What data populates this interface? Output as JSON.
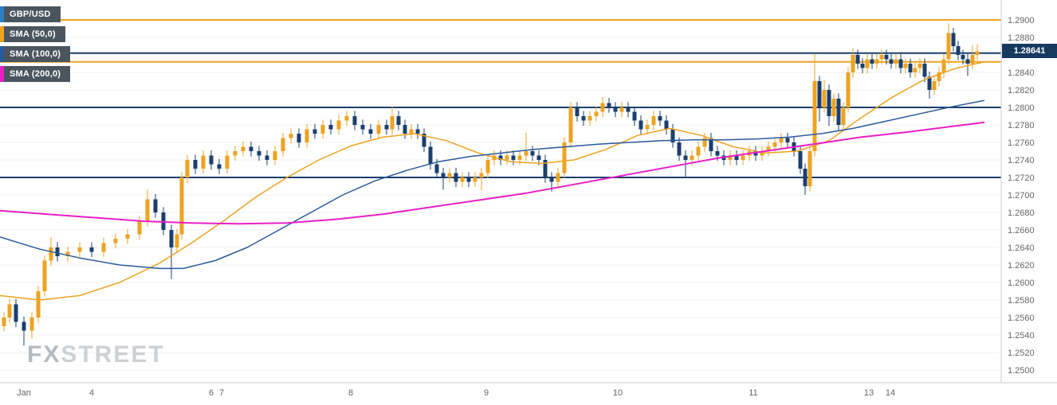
{
  "legend": {
    "symbol": "GBP/USD",
    "sma50": "SMA (50,0)",
    "sma100": "SMA (100,0)",
    "sma200": "SMA (200,0)"
  },
  "price_label": "1.28641",
  "watermark": {
    "fx": "FX",
    "street": "STREET"
  },
  "colors": {
    "navy": "#1b3f6e",
    "orange": "#eda321",
    "blue": "#2a5a9c",
    "magenta": "#e81fc6",
    "grid": "#f0f0f0",
    "axis_text": "#666666",
    "border": "#cccccc"
  },
  "chart_data": {
    "type": "candlestick",
    "symbol": "GBP/USD",
    "overlays": [
      "SMA(50)",
      "SMA(100)",
      "SMA(200)"
    ],
    "last_price": 1.28641,
    "ylim": [
      1.249,
      1.292
    ],
    "y_ticks": [
      "1.2900",
      "1.2880",
      "1.2860",
      "1.2840",
      "1.2820",
      "1.2800",
      "1.2780",
      "1.2760",
      "1.2740",
      "1.2720",
      "1.2700",
      "1.2680",
      "1.2660",
      "1.2640",
      "1.2620",
      "1.2600",
      "1.2580",
      "1.2560",
      "1.2540",
      "1.2520",
      "1.2500"
    ],
    "x_axis_labels": [
      [
        "Jan",
        30
      ],
      [
        "4",
        115
      ],
      [
        "6",
        265
      ],
      [
        "7",
        278
      ],
      [
        "8",
        440
      ],
      [
        "9",
        610
      ],
      [
        "10",
        775
      ],
      [
        "11",
        945
      ],
      [
        "13",
        1090
      ],
      [
        "14",
        1117
      ]
    ],
    "horizontal_lines": [
      {
        "price": 1.29,
        "color_key": "orange",
        "width": 2
      },
      {
        "price": 1.2862,
        "color_key": "navy",
        "width": 2
      },
      {
        "price": 1.2852,
        "color_key": "orange",
        "width": 2
      },
      {
        "price": 1.28,
        "color_key": "navy",
        "width": 2
      },
      {
        "price": 1.272,
        "color_key": "navy",
        "width": 2
      }
    ],
    "candles": [
      [
        5,
        1.255,
        1.2566,
        1.2544,
        1.256
      ],
      [
        12,
        1.256,
        1.2581,
        1.2554,
        1.2575
      ],
      [
        20,
        1.2575,
        1.2581,
        1.2549,
        1.2555
      ],
      [
        30,
        1.2555,
        1.2561,
        1.2528,
        1.2545
      ],
      [
        40,
        1.2545,
        1.2566,
        1.2536,
        1.256
      ],
      [
        48,
        1.256,
        1.2596,
        1.2554,
        1.259
      ],
      [
        56,
        1.259,
        1.2631,
        1.2584,
        1.2625
      ],
      [
        64,
        1.2625,
        1.2652,
        1.2619,
        1.264
      ],
      [
        72,
        1.264,
        1.2646,
        1.2624,
        1.263
      ],
      [
        85,
        1.263,
        1.2641,
        1.2624,
        1.2635
      ],
      [
        100,
        1.2635,
        1.2646,
        1.2629,
        1.264
      ],
      [
        115,
        1.264,
        1.2646,
        1.2629,
        1.2635
      ],
      [
        130,
        1.2635,
        1.2651,
        1.2629,
        1.2645
      ],
      [
        145,
        1.2645,
        1.2656,
        1.2639,
        1.265
      ],
      [
        160,
        1.265,
        1.2661,
        1.2644,
        1.2655
      ],
      [
        175,
        1.2655,
        1.2676,
        1.2649,
        1.267
      ],
      [
        185,
        1.267,
        1.2706,
        1.2664,
        1.2695
      ],
      [
        195,
        1.2695,
        1.2701,
        1.2674,
        1.268
      ],
      [
        205,
        1.268,
        1.2686,
        1.2654,
        1.266
      ],
      [
        215,
        1.266,
        1.2666,
        1.2604,
        1.264
      ],
      [
        222,
        1.264,
        1.2661,
        1.2634,
        1.2655
      ],
      [
        228,
        1.2655,
        1.2726,
        1.2649,
        1.272
      ],
      [
        235,
        1.272,
        1.2746,
        1.2714,
        1.274
      ],
      [
        245,
        1.274,
        1.2746,
        1.2724,
        1.273
      ],
      [
        255,
        1.273,
        1.2751,
        1.2724,
        1.2745
      ],
      [
        265,
        1.2745,
        1.2751,
        1.2729,
        1.2735
      ],
      [
        275,
        1.2735,
        1.2741,
        1.2724,
        1.273
      ],
      [
        285,
        1.273,
        1.2751,
        1.2724,
        1.2745
      ],
      [
        295,
        1.2745,
        1.2756,
        1.2739,
        1.275
      ],
      [
        305,
        1.275,
        1.2761,
        1.2744,
        1.2755
      ],
      [
        315,
        1.2755,
        1.2761,
        1.2744,
        1.275
      ],
      [
        325,
        1.275,
        1.2756,
        1.2739,
        1.2745
      ],
      [
        335,
        1.2745,
        1.2751,
        1.2734,
        1.274
      ],
      [
        345,
        1.274,
        1.2756,
        1.2734,
        1.275
      ],
      [
        355,
        1.275,
        1.2771,
        1.2744,
        1.2765
      ],
      [
        365,
        1.2765,
        1.2776,
        1.2759,
        1.277
      ],
      [
        375,
        1.277,
        1.2776,
        1.2754,
        1.276
      ],
      [
        385,
        1.276,
        1.2781,
        1.2754,
        1.2775
      ],
      [
        395,
        1.2775,
        1.2781,
        1.2764,
        1.277
      ],
      [
        405,
        1.277,
        1.2786,
        1.2764,
        1.278
      ],
      [
        415,
        1.278,
        1.2786,
        1.2769,
        1.2775
      ],
      [
        425,
        1.2775,
        1.2791,
        1.2769,
        1.2785
      ],
      [
        435,
        1.2785,
        1.2796,
        1.2779,
        1.279
      ],
      [
        445,
        1.279,
        1.2796,
        1.2774,
        1.278
      ],
      [
        455,
        1.278,
        1.2786,
        1.2769,
        1.2775
      ],
      [
        465,
        1.2775,
        1.2781,
        1.2764,
        1.277
      ],
      [
        475,
        1.277,
        1.2786,
        1.2764,
        1.278
      ],
      [
        485,
        1.278,
        1.2786,
        1.2769,
        1.2775
      ],
      [
        492,
        1.2775,
        1.2801,
        1.2769,
        1.279
      ],
      [
        500,
        1.279,
        1.2796,
        1.2774,
        1.278
      ],
      [
        508,
        1.278,
        1.2786,
        1.2764,
        1.277
      ],
      [
        516,
        1.277,
        1.2781,
        1.2764,
        1.2775
      ],
      [
        524,
        1.2775,
        1.2781,
        1.2764,
        1.277
      ],
      [
        532,
        1.277,
        1.2776,
        1.2749,
        1.2755
      ],
      [
        540,
        1.2755,
        1.2761,
        1.2729,
        1.2735
      ],
      [
        548,
        1.2735,
        1.2741,
        1.2719,
        1.2725
      ],
      [
        556,
        1.2725,
        1.2731,
        1.2706,
        1.272
      ],
      [
        564,
        1.272,
        1.2731,
        1.2714,
        1.2725
      ],
      [
        572,
        1.2725,
        1.2731,
        1.2709,
        1.2715
      ],
      [
        580,
        1.2715,
        1.2726,
        1.2709,
        1.272
      ],
      [
        588,
        1.272,
        1.2726,
        1.2709,
        1.2715
      ],
      [
        596,
        1.2715,
        1.2726,
        1.2709,
        1.272
      ],
      [
        604,
        1.272,
        1.2731,
        1.2705,
        1.2725
      ],
      [
        612,
        1.2725,
        1.2746,
        1.2719,
        1.274
      ],
      [
        620,
        1.274,
        1.2751,
        1.2734,
        1.2745
      ],
      [
        628,
        1.2745,
        1.2751,
        1.2734,
        1.274
      ],
      [
        636,
        1.274,
        1.2751,
        1.2734,
        1.2745
      ],
      [
        644,
        1.2745,
        1.2751,
        1.2734,
        1.274
      ],
      [
        652,
        1.274,
        1.2751,
        1.2734,
        1.2745
      ],
      [
        660,
        1.2745,
        1.2771,
        1.2739,
        1.275
      ],
      [
        668,
        1.275,
        1.2756,
        1.2739,
        1.2745
      ],
      [
        676,
        1.2745,
        1.2751,
        1.2734,
        1.274
      ],
      [
        684,
        1.274,
        1.2746,
        1.2714,
        1.272
      ],
      [
        692,
        1.272,
        1.2726,
        1.2704,
        1.2715
      ],
      [
        700,
        1.2715,
        1.2731,
        1.2709,
        1.2725
      ],
      [
        708,
        1.2725,
        1.2766,
        1.2719,
        1.276
      ],
      [
        716,
        1.276,
        1.2806,
        1.2754,
        1.28
      ],
      [
        724,
        1.28,
        1.2806,
        1.2784,
        1.279
      ],
      [
        732,
        1.279,
        1.2796,
        1.2779,
        1.2785
      ],
      [
        740,
        1.2785,
        1.2796,
        1.2779,
        1.279
      ],
      [
        748,
        1.279,
        1.2801,
        1.2784,
        1.2795
      ],
      [
        756,
        1.2795,
        1.2812,
        1.2789,
        1.2805
      ],
      [
        764,
        1.2805,
        1.2811,
        1.2794,
        1.28
      ],
      [
        772,
        1.28,
        1.2806,
        1.2789,
        1.2795
      ],
      [
        780,
        1.2795,
        1.2806,
        1.2789,
        1.28
      ],
      [
        788,
        1.28,
        1.2806,
        1.2789,
        1.2795
      ],
      [
        796,
        1.2795,
        1.2801,
        1.2779,
        1.2785
      ],
      [
        804,
        1.2785,
        1.2791,
        1.2769,
        1.2775
      ],
      [
        812,
        1.2775,
        1.2786,
        1.2769,
        1.278
      ],
      [
        820,
        1.278,
        1.2796,
        1.2774,
        1.279
      ],
      [
        828,
        1.279,
        1.2796,
        1.2779,
        1.2785
      ],
      [
        836,
        1.2785,
        1.2791,
        1.2769,
        1.2775
      ],
      [
        844,
        1.2775,
        1.2781,
        1.2754,
        1.276
      ],
      [
        852,
        1.276,
        1.2766,
        1.2739,
        1.2745
      ],
      [
        860,
        1.2745,
        1.2751,
        1.272,
        1.274
      ],
      [
        868,
        1.274,
        1.2751,
        1.2734,
        1.2745
      ],
      [
        876,
        1.2745,
        1.2761,
        1.2739,
        1.2755
      ],
      [
        884,
        1.2755,
        1.2771,
        1.2749,
        1.2765
      ],
      [
        892,
        1.2765,
        1.2771,
        1.2744,
        1.275
      ],
      [
        900,
        1.275,
        1.2756,
        1.2739,
        1.2745
      ],
      [
        908,
        1.2745,
        1.2751,
        1.2734,
        1.274
      ],
      [
        916,
        1.274,
        1.2751,
        1.2734,
        1.2745
      ],
      [
        924,
        1.2745,
        1.2751,
        1.2734,
        1.274
      ],
      [
        932,
        1.274,
        1.2751,
        1.2734,
        1.2745
      ],
      [
        940,
        1.2745,
        1.2756,
        1.2739,
        1.275
      ],
      [
        948,
        1.275,
        1.2756,
        1.2739,
        1.2745
      ],
      [
        956,
        1.2745,
        1.2756,
        1.2739,
        1.275
      ],
      [
        964,
        1.275,
        1.2761,
        1.2744,
        1.2755
      ],
      [
        972,
        1.2755,
        1.2766,
        1.2749,
        1.276
      ],
      [
        980,
        1.276,
        1.2771,
        1.2754,
        1.2765
      ],
      [
        988,
        1.2765,
        1.2771,
        1.2754,
        1.276
      ],
      [
        996,
        1.276,
        1.2766,
        1.2744,
        1.275
      ],
      [
        1004,
        1.275,
        1.2756,
        1.2724,
        1.273
      ],
      [
        1010,
        1.273,
        1.2736,
        1.27,
        1.271
      ],
      [
        1016,
        1.271,
        1.2756,
        1.2704,
        1.275
      ],
      [
        1022,
        1.275,
        1.2861,
        1.2744,
        1.283
      ],
      [
        1028,
        1.283,
        1.2836,
        1.2784,
        1.28
      ],
      [
        1034,
        1.28,
        1.2831,
        1.2794,
        1.282
      ],
      [
        1040,
        1.282,
        1.2826,
        1.2779,
        1.279
      ],
      [
        1046,
        1.279,
        1.2816,
        1.2784,
        1.281
      ],
      [
        1052,
        1.281,
        1.2816,
        1.2774,
        1.278
      ],
      [
        1058,
        1.278,
        1.2806,
        1.2774,
        1.28
      ],
      [
        1064,
        1.28,
        1.2846,
        1.2794,
        1.284
      ],
      [
        1070,
        1.284,
        1.2868,
        1.2834,
        1.286
      ],
      [
        1076,
        1.286,
        1.2866,
        1.2844,
        1.285
      ],
      [
        1082,
        1.285,
        1.2856,
        1.2839,
        1.2845
      ],
      [
        1088,
        1.2845,
        1.2861,
        1.2839,
        1.2855
      ],
      [
        1094,
        1.2855,
        1.2861,
        1.2844,
        1.285
      ],
      [
        1100,
        1.285,
        1.2861,
        1.2844,
        1.2855
      ],
      [
        1106,
        1.2855,
        1.2866,
        1.2849,
        1.286
      ],
      [
        1112,
        1.286,
        1.2866,
        1.2849,
        1.2855
      ],
      [
        1118,
        1.2855,
        1.2861,
        1.2844,
        1.285
      ],
      [
        1124,
        1.285,
        1.2861,
        1.2844,
        1.2855
      ],
      [
        1130,
        1.2855,
        1.2861,
        1.2839,
        1.2845
      ],
      [
        1136,
        1.2845,
        1.2856,
        1.2839,
        1.285
      ],
      [
        1142,
        1.285,
        1.2856,
        1.2834,
        1.284
      ],
      [
        1148,
        1.284,
        1.2851,
        1.2834,
        1.2845
      ],
      [
        1154,
        1.2845,
        1.2856,
        1.2839,
        1.285
      ],
      [
        1160,
        1.285,
        1.2856,
        1.2829,
        1.2835
      ],
      [
        1166,
        1.2835,
        1.2841,
        1.281,
        1.282
      ],
      [
        1172,
        1.282,
        1.2836,
        1.2814,
        1.283
      ],
      [
        1178,
        1.283,
        1.2846,
        1.2824,
        1.284
      ],
      [
        1184,
        1.284,
        1.2861,
        1.2834,
        1.2855
      ],
      [
        1190,
        1.2855,
        1.2896,
        1.2849,
        1.2885
      ],
      [
        1196,
        1.2885,
        1.2891,
        1.2864,
        1.287
      ],
      [
        1202,
        1.287,
        1.2876,
        1.2854,
        1.286
      ],
      [
        1208,
        1.286,
        1.2866,
        1.2849,
        1.2855
      ],
      [
        1214,
        1.2855,
        1.2861,
        1.2836,
        1.285
      ],
      [
        1220,
        1.285,
        1.2871,
        1.2844,
        1.286
      ],
      [
        1226,
        1.286,
        1.2872,
        1.2854,
        1.28641
      ]
    ],
    "sma50": [
      [
        0,
        1.2585
      ],
      [
        50,
        1.258
      ],
      [
        100,
        1.2585
      ],
      [
        150,
        1.26
      ],
      [
        200,
        1.2622
      ],
      [
        240,
        1.2645
      ],
      [
        280,
        1.267
      ],
      [
        320,
        1.2697
      ],
      [
        360,
        1.272
      ],
      [
        400,
        1.274
      ],
      [
        440,
        1.2756
      ],
      [
        480,
        1.2766
      ],
      [
        520,
        1.277
      ],
      [
        560,
        1.2762
      ],
      [
        600,
        1.2748
      ],
      [
        640,
        1.2738
      ],
      [
        680,
        1.2736
      ],
      [
        720,
        1.274
      ],
      [
        760,
        1.2752
      ],
      [
        800,
        1.2768
      ],
      [
        840,
        1.2776
      ],
      [
        880,
        1.2768
      ],
      [
        920,
        1.2755
      ],
      [
        960,
        1.2748
      ],
      [
        1000,
        1.275
      ],
      [
        1040,
        1.2762
      ],
      [
        1080,
        1.2788
      ],
      [
        1120,
        1.2812
      ],
      [
        1160,
        1.2832
      ],
      [
        1200,
        1.2845
      ],
      [
        1235,
        1.2852
      ]
    ],
    "sma100": [
      [
        0,
        1.2652
      ],
      [
        50,
        1.2638
      ],
      [
        100,
        1.2628
      ],
      [
        150,
        1.262
      ],
      [
        200,
        1.2616
      ],
      [
        230,
        1.2616
      ],
      [
        270,
        1.2625
      ],
      [
        310,
        1.264
      ],
      [
        350,
        1.266
      ],
      [
        390,
        1.268
      ],
      [
        430,
        1.27
      ],
      [
        470,
        1.2716
      ],
      [
        510,
        1.2728
      ],
      [
        550,
        1.2738
      ],
      [
        590,
        1.2744
      ],
      [
        630,
        1.2748
      ],
      [
        670,
        1.2752
      ],
      [
        710,
        1.2755
      ],
      [
        750,
        1.2758
      ],
      [
        790,
        1.276
      ],
      [
        830,
        1.2762
      ],
      [
        870,
        1.2763
      ],
      [
        910,
        1.2763
      ],
      [
        950,
        1.2764
      ],
      [
        990,
        1.2766
      ],
      [
        1030,
        1.277
      ],
      [
        1070,
        1.2776
      ],
      [
        1110,
        1.2784
      ],
      [
        1150,
        1.2792
      ],
      [
        1190,
        1.28
      ],
      [
        1235,
        1.2808
      ]
    ],
    "sma200": [
      [
        0,
        1.2682
      ],
      [
        60,
        1.2678
      ],
      [
        120,
        1.2674
      ],
      [
        180,
        1.267
      ],
      [
        240,
        1.2668
      ],
      [
        300,
        1.2667
      ],
      [
        360,
        1.2668
      ],
      [
        420,
        1.2672
      ],
      [
        480,
        1.2678
      ],
      [
        540,
        1.2686
      ],
      [
        600,
        1.2694
      ],
      [
        660,
        1.2702
      ],
      [
        720,
        1.2712
      ],
      [
        780,
        1.2722
      ],
      [
        840,
        1.2732
      ],
      [
        900,
        1.2742
      ],
      [
        960,
        1.275
      ],
      [
        1020,
        1.2758
      ],
      [
        1080,
        1.2766
      ],
      [
        1140,
        1.2772
      ],
      [
        1200,
        1.2779
      ],
      [
        1235,
        1.2783
      ]
    ]
  }
}
